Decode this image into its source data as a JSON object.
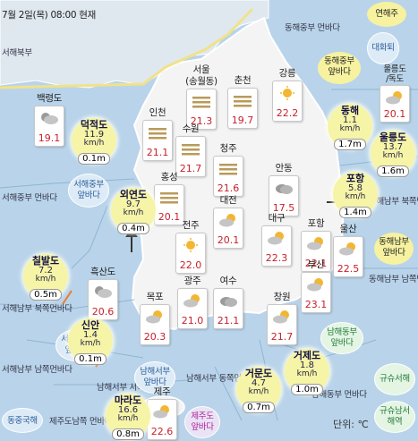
{
  "title": "7월 2일(목) 08:00 현재",
  "unit_label": "단위: ℃",
  "colors": {
    "sea": "#b9d4ea",
    "land": "#f4f4f4",
    "temp": "#c8202a",
    "buoy": "#f6f4a6",
    "warning_line": "#f0e28a"
  },
  "cities": [
    {
      "name": "백령도",
      "weather": "partly-cloudy-icon",
      "temp": "19.1"
    },
    {
      "name": "인천",
      "weather": "fog-icon",
      "temp": "21.1"
    },
    {
      "name": "서울\n(송월동)",
      "weather": "fog-icon",
      "temp": "21.3"
    },
    {
      "name": "춘천",
      "weather": "fog-icon",
      "temp": "19.7"
    },
    {
      "name": "강릉",
      "weather": "sunny-icon",
      "temp": "22.2"
    },
    {
      "name": "수원",
      "weather": "fog-icon",
      "temp": "21.7"
    },
    {
      "name": "청주",
      "weather": "fog-icon",
      "temp": "21.6"
    },
    {
      "name": "홍성",
      "weather": "fog-icon",
      "temp": "20.1"
    },
    {
      "name": "안동",
      "weather": "cloudy-icon",
      "temp": "17.5"
    },
    {
      "name": "대전",
      "weather": "partly-sunny-icon",
      "temp": "20.1"
    },
    {
      "name": "포항",
      "weather": "partly-sunny-icon",
      "temp": "22.1"
    },
    {
      "name": "전주",
      "weather": "sunny-icon",
      "temp": "22.0"
    },
    {
      "name": "대구",
      "weather": "partly-sunny-icon",
      "temp": "22.3"
    },
    {
      "name": "울산",
      "weather": "partly-sunny-icon",
      "temp": "22.5"
    },
    {
      "name": "흑산도",
      "weather": "partly-cloudy-icon",
      "temp": "20.6"
    },
    {
      "name": "부산",
      "weather": "partly-sunny-icon",
      "temp": "23.1"
    },
    {
      "name": "창원",
      "weather": "partly-sunny-icon",
      "temp": "21.7"
    },
    {
      "name": "목포",
      "weather": "partly-sunny-icon",
      "temp": "20.3"
    },
    {
      "name": "광주",
      "weather": "partly-sunny-icon",
      "temp": "21.0"
    },
    {
      "name": "여수",
      "weather": "cloudy-icon",
      "temp": "21.1"
    },
    {
      "name": "제주",
      "weather": "partly-sunny-icon",
      "temp": "22.6"
    },
    {
      "name": "울릉도\n/독도",
      "weather": "partly-sunny-icon",
      "temp": "20.1"
    }
  ],
  "buoys": [
    {
      "name": "덕적도",
      "wind": "11.9",
      "unit": "km/h",
      "wave": "0.1m"
    },
    {
      "name": "외연도",
      "wind": "9.7",
      "unit": "km/h",
      "wave": "0.4m"
    },
    {
      "name": "칠발도",
      "wind": "7.2",
      "unit": "km/h",
      "wave": "0.5m"
    },
    {
      "name": "신안",
      "wind": "1.4",
      "unit": "km/h",
      "wave": "0.1m"
    },
    {
      "name": "마라도",
      "wind": "16.6",
      "unit": "km/h",
      "wave": "0.8m"
    },
    {
      "name": "거문도",
      "wind": "4.7",
      "unit": "km/h",
      "wave": "0.7m"
    },
    {
      "name": "거제도",
      "wind": "1.8",
      "unit": "km/h",
      "wave": "1.0m"
    },
    {
      "name": "포항",
      "wind": "5.8",
      "unit": "km/h",
      "wave": "1.4m"
    },
    {
      "name": "동해",
      "wind": "1.1",
      "unit": "km/h",
      "wave": "1.7m"
    },
    {
      "name": "울릉도",
      "wind": "13.7",
      "unit": "km/h",
      "wave": "1.6m"
    }
  ],
  "sea_labels": [
    "서해북부",
    "동해중부\n먼바다",
    "서해중부\n먼바다",
    "서해남부\n북쪽먼바다",
    "서해남부\n남쪽먼바다",
    "남해서부\n서쪽먼바다",
    "남해서부\n동쪽먼바다",
    "제주도남쪽\n먼바다",
    "동해남부\n남쪽먼바다",
    "동해남부\n북쪽먼바다",
    "남해동부\n먼바다"
  ],
  "area_tags": [
    {
      "text": "연해주",
      "style": "yellow"
    },
    {
      "text": "대화퇴",
      "style": "blue"
    },
    {
      "text": "동해중부\n앞바다",
      "style": "yellow"
    },
    {
      "text": "서해중부\n앞바다",
      "style": "blue"
    },
    {
      "text": "동해남부\n앞바다",
      "style": "yellow"
    },
    {
      "text": "서해남부\n앞바다",
      "style": "blue"
    },
    {
      "text": "남해서부\n앞바다",
      "style": "blue"
    },
    {
      "text": "남해동부\n앞바다",
      "style": "green"
    },
    {
      "text": "제주도\n앞바다",
      "style": "magenta"
    },
    {
      "text": "동중국해",
      "style": "blue"
    },
    {
      "text": "규슈서해",
      "style": "green"
    },
    {
      "text": "규슈남서\n해역",
      "style": "green"
    }
  ]
}
